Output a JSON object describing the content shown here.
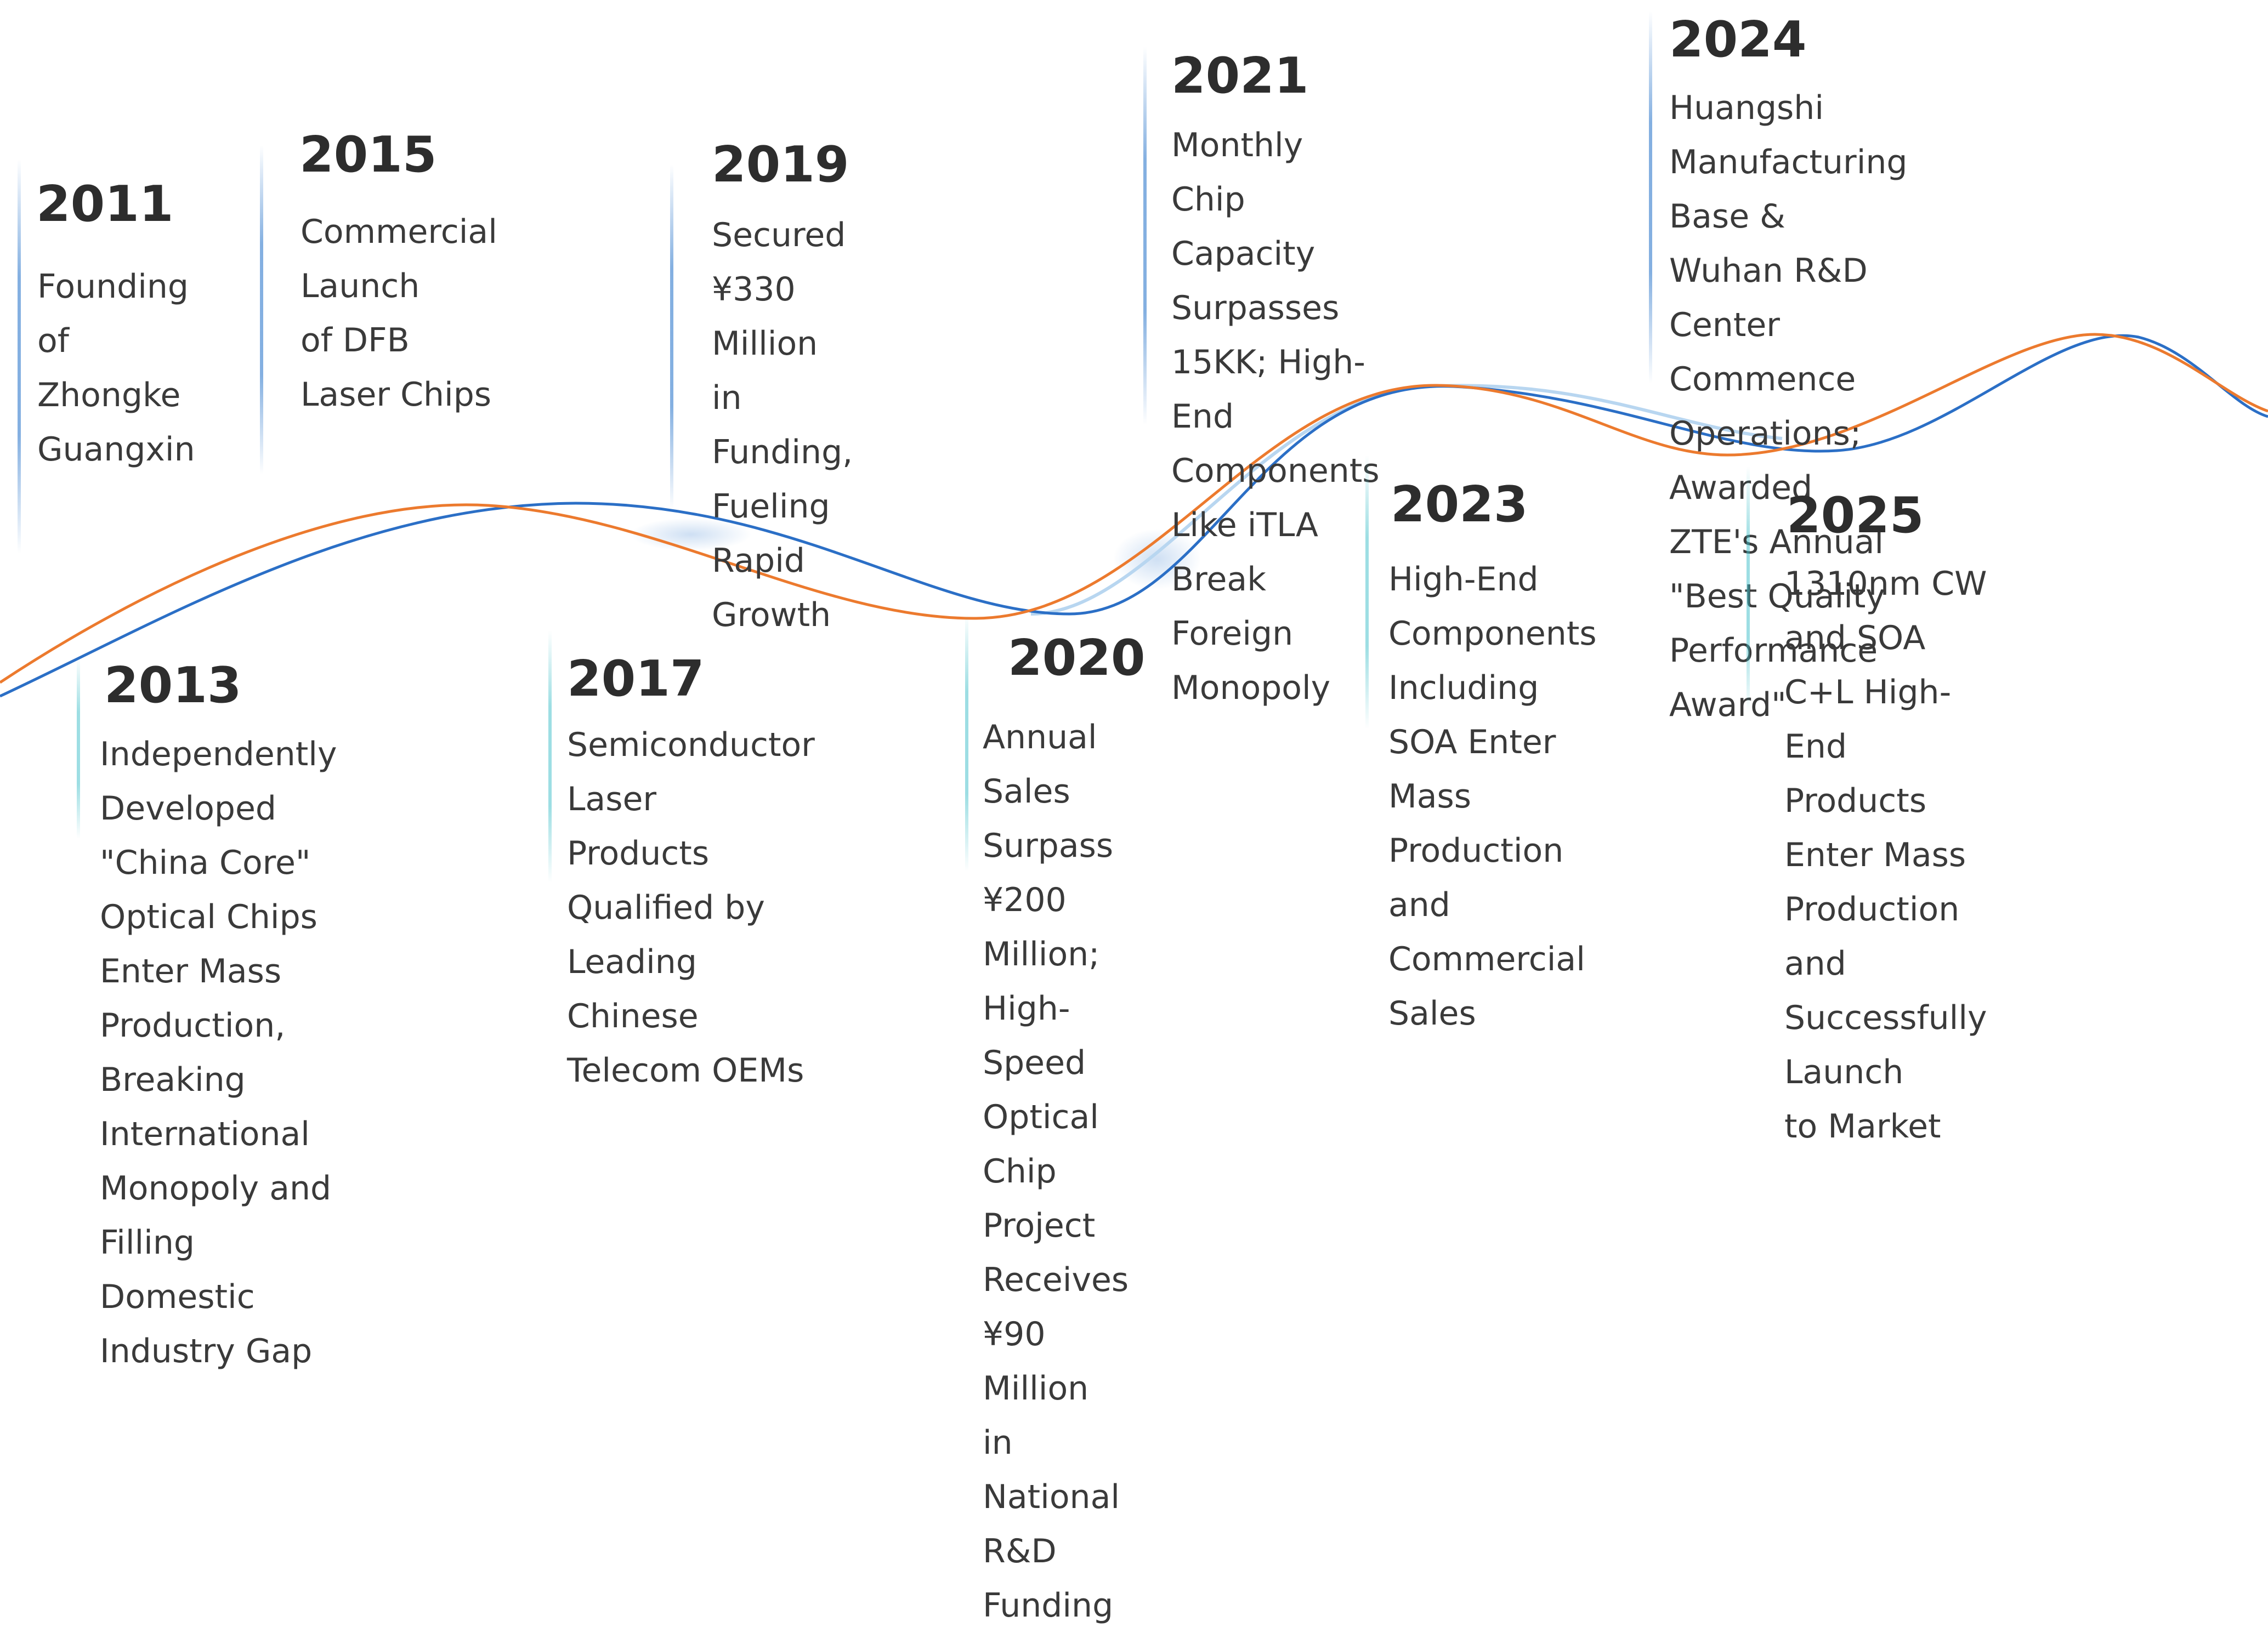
{
  "colors": {
    "orange_curve": "#ec7a2e",
    "blue_curve": "#2b6fc6",
    "light_curve": "#b8d6f0",
    "year_text": "#2d2d2d",
    "body_text": "#3a3a3a"
  },
  "milestones": [
    {
      "year": "2011",
      "text": "Founding of\nZhongke\nGuangxin"
    },
    {
      "year": "2013",
      "text": "Independently Developed\n\"China Core\" Optical Chips\nEnter Mass Production,\nBreaking International\nMonopoly and Filling\nDomestic Industry Gap"
    },
    {
      "year": "2015",
      "text": "Commercial Launch\nof DFB Laser Chips"
    },
    {
      "year": "2017",
      "text": "Semiconductor Laser\nProducts Qualified by\nLeading Chinese\nTelecom OEMs"
    },
    {
      "year": "2019",
      "text": "Secured ¥330 Million\nin Funding, Fueling\nRapid Growth"
    },
    {
      "year": "2020",
      "text": "Annual Sales Surpass\n¥200 Million; High-\nSpeed Optical Chip\nProject Receives ¥90\nMillion in National R&D\nFunding"
    },
    {
      "year": "2021",
      "text": "Monthly Chip Capacity\nSurpasses 15KK; High-End\nComponents Like iTLA\nBreak Foreign Monopoly"
    },
    {
      "year": "2023",
      "text": "High-End\nComponents\nIncluding SOA Enter\nMass Production and\nCommercial Sales"
    },
    {
      "year": "2024",
      "text": "Huangshi Manufacturing Base &\nWuhan R&D Center Commence\nOperations; Awarded ZTE's Annual\n\"Best Quality Performance Award\""
    },
    {
      "year": "2025",
      "text": "1310nm CW and SOA\nC+L High-End Products\nEnter Mass Production\nand Successfully Launch\nto Market"
    }
  ]
}
